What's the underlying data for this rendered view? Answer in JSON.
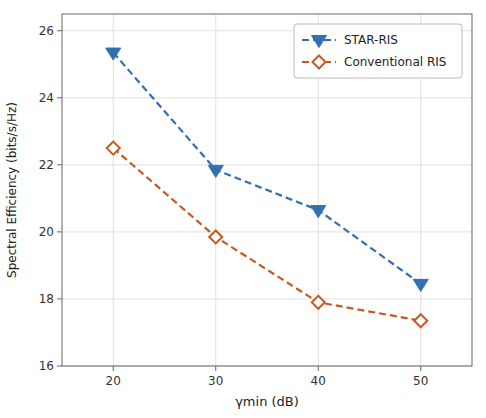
{
  "chart_data": {
    "type": "line",
    "x": [
      20,
      30,
      40,
      50
    ],
    "series": [
      {
        "name": "STAR-RIS",
        "color": "#3070b3",
        "values": [
          25.35,
          21.85,
          20.65,
          18.45
        ],
        "marker": "triangle_down",
        "line_style": "dashed"
      },
      {
        "name": "Conventional RIS",
        "color": "#c85820",
        "values": [
          22.5,
          19.85,
          17.9,
          17.35
        ],
        "marker": "diamond",
        "line_style": "dashed"
      }
    ],
    "xlabel": "γmin (dB)",
    "ylabel": "Spectral Efficiency (bits/s/Hz)",
    "xlim": [
      15,
      55
    ],
    "ylim": [
      16,
      26.5
    ],
    "xticks": [
      20,
      30,
      40,
      50
    ],
    "yticks": [
      16,
      18,
      20,
      22,
      24,
      26
    ],
    "grid": true,
    "legend": "upper right"
  }
}
